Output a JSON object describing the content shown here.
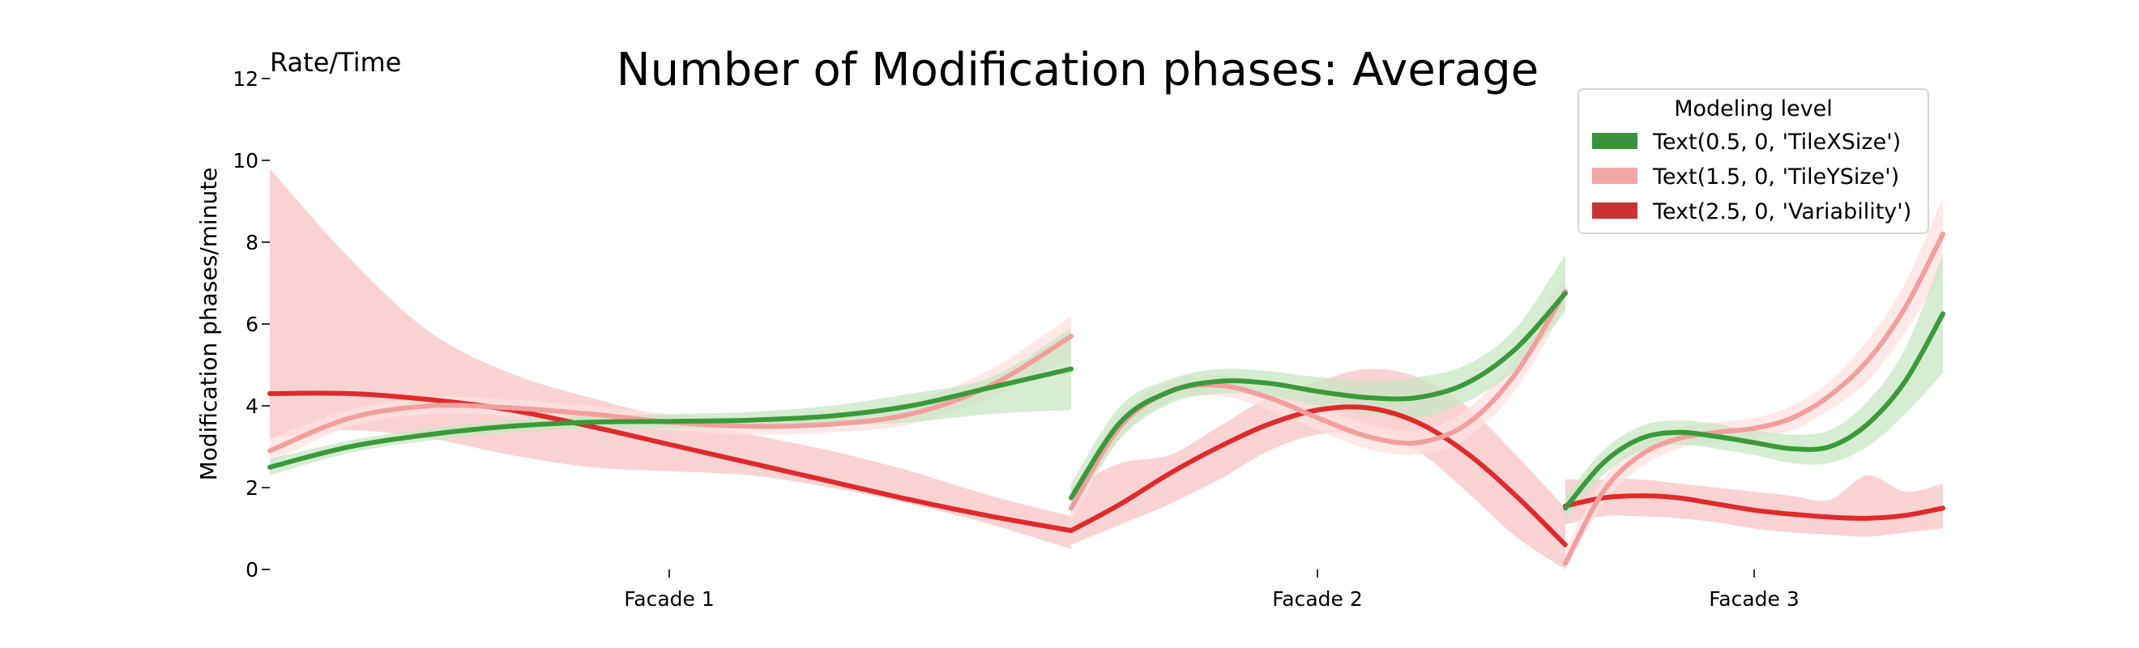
{
  "chart_data": {
    "type": "line",
    "title": "Number of Modification phases: Average",
    "corner_label": "Rate/Time",
    "ylabel": "Modification phases/minute",
    "xlabel": "",
    "ylim": [
      0,
      12
    ],
    "yticks": [
      0,
      2,
      4,
      6,
      8,
      10,
      12
    ],
    "grid": false,
    "legend": {
      "title": "Modeling level",
      "placement": "top-right",
      "entries": [
        "Text(0.5, 0, 'TileXSize')",
        "Text(1.5, 0, 'TileYSize')",
        "Text(2.5, 0, 'Variability')"
      ]
    },
    "colors": {
      "TileXSize": "#3a9a3a",
      "TileYSize": "#f29e9e",
      "Variability": "#df2a2a",
      "band_TileXSize": "#c8e6c4",
      "band_TileYSize": "#fde0e0",
      "band_Variability": "#f7c4c6",
      "legend_TileXSize": "#3a923a",
      "legend_TileYSize": "#f2a6a6",
      "legend_Variability": "#c83232"
    },
    "panels": [
      {
        "category": "Facade 1",
        "series": [
          {
            "key": "TileXSize",
            "x": [
              0,
              0.1,
              0.2,
              0.3,
              0.4,
              0.5,
              0.6,
              0.7,
              0.8,
              0.9,
              1.0
            ],
            "y": [
              2.5,
              3.0,
              3.3,
              3.5,
              3.6,
              3.62,
              3.65,
              3.75,
              4.0,
              4.45,
              4.9
            ],
            "lo": [
              2.3,
              2.85,
              3.15,
              3.35,
              3.45,
              3.45,
              3.45,
              3.5,
              3.6,
              3.8,
              3.9
            ],
            "hi": [
              2.7,
              3.15,
              3.45,
              3.65,
              3.75,
              3.8,
              3.85,
              4.0,
              4.3,
              4.7,
              5.9
            ]
          },
          {
            "key": "TileYSize",
            "x": [
              0,
              0.1,
              0.2,
              0.3,
              0.4,
              0.5,
              0.6,
              0.7,
              0.8,
              0.9,
              1.0
            ],
            "y": [
              2.9,
              3.7,
              4.0,
              3.95,
              3.8,
              3.6,
              3.5,
              3.55,
              3.8,
              4.5,
              5.7
            ],
            "lo": [
              2.6,
              3.5,
              3.8,
              3.75,
              3.6,
              3.4,
              3.3,
              3.35,
              3.55,
              4.2,
              5.2
            ],
            "hi": [
              3.2,
              3.9,
              4.2,
              4.15,
              4.0,
              3.8,
              3.7,
              3.75,
              4.1,
              4.9,
              6.2
            ]
          },
          {
            "key": "Variability",
            "x": [
              0,
              0.1,
              0.2,
              0.3,
              0.4,
              0.5,
              0.6,
              0.7,
              0.8,
              0.9,
              1.0
            ],
            "y": [
              4.3,
              4.3,
              4.15,
              3.9,
              3.5,
              3.05,
              2.6,
              2.15,
              1.7,
              1.3,
              0.95
            ],
            "lo": [
              3.2,
              3.4,
              3.2,
              2.8,
              2.5,
              2.4,
              2.3,
              2.0,
              1.6,
              1.1,
              0.5
            ],
            "hi": [
              9.8,
              7.6,
              5.8,
              4.8,
              4.2,
              3.7,
              3.3,
              2.9,
              2.4,
              1.8,
              1.3
            ]
          }
        ]
      },
      {
        "category": "Facade 2",
        "series": [
          {
            "key": "TileXSize",
            "x": [
              0,
              0.1,
              0.2,
              0.3,
              0.4,
              0.5,
              0.6,
              0.7,
              0.8,
              0.9,
              1.0
            ],
            "y": [
              1.75,
              3.6,
              4.35,
              4.6,
              4.55,
              4.35,
              4.2,
              4.2,
              4.55,
              5.4,
              6.75
            ],
            "lo": [
              1.4,
              3.2,
              4.05,
              4.3,
              4.25,
              4.0,
              3.8,
              3.7,
              4.1,
              4.9,
              6.3
            ],
            "hi": [
              2.1,
              4.0,
              4.65,
              4.9,
              4.85,
              4.7,
              4.6,
              4.7,
              5.0,
              5.9,
              7.7
            ]
          },
          {
            "key": "TileYSize",
            "x": [
              0,
              0.1,
              0.2,
              0.3,
              0.4,
              0.5,
              0.6,
              0.7,
              0.8,
              0.9,
              1.0
            ],
            "y": [
              1.5,
              3.5,
              4.35,
              4.5,
              4.2,
              3.7,
              3.25,
              3.1,
              3.55,
              4.8,
              6.8
            ],
            "lo": [
              1.2,
              3.2,
              4.1,
              4.25,
              3.9,
              3.4,
              2.95,
              2.8,
              3.2,
              4.4,
              6.4
            ],
            "hi": [
              1.8,
              3.8,
              4.6,
              4.75,
              4.5,
              4.0,
              3.55,
              3.4,
              3.9,
              5.2,
              7.2
            ]
          },
          {
            "key": "Variability",
            "x": [
              0,
              0.1,
              0.2,
              0.3,
              0.4,
              0.5,
              0.6,
              0.7,
              0.8,
              0.9,
              1.0
            ],
            "y": [
              0.95,
              1.6,
              2.35,
              3.0,
              3.55,
              3.9,
              3.95,
              3.6,
              2.85,
              1.8,
              0.6
            ],
            "lo": [
              0.6,
              1.1,
              1.6,
              2.2,
              2.9,
              3.3,
              3.3,
              2.9,
              1.9,
              0.8,
              0.0
            ],
            "hi": [
              2.0,
              2.6,
              2.8,
              3.5,
              4.2,
              4.6,
              4.9,
              4.7,
              4.0,
              2.8,
              1.5
            ]
          }
        ]
      },
      {
        "category": "Facade 3",
        "series": [
          {
            "key": "TileXSize",
            "x": [
              0,
              0.1,
              0.2,
              0.3,
              0.4,
              0.5,
              0.6,
              0.7,
              0.8,
              0.9,
              1.0
            ],
            "y": [
              1.5,
              2.6,
              3.2,
              3.35,
              3.25,
              3.1,
              2.95,
              3.0,
              3.55,
              4.6,
              6.25
            ],
            "lo": [
              1.2,
              2.3,
              2.9,
              3.05,
              2.95,
              2.8,
              2.6,
              2.6,
              3.0,
              3.8,
              4.8
            ],
            "hi": [
              1.8,
              2.9,
              3.5,
              3.65,
              3.55,
              3.4,
              3.3,
              3.4,
              4.1,
              5.4,
              7.7
            ]
          },
          {
            "key": "TileYSize",
            "x": [
              0,
              0.1,
              0.2,
              0.3,
              0.4,
              0.5,
              0.6,
              0.7,
              0.8,
              0.9,
              1.0
            ],
            "y": [
              0.15,
              1.9,
              2.8,
              3.2,
              3.35,
              3.45,
              3.7,
              4.25,
              5.1,
              6.4,
              8.2
            ],
            "lo": [
              0.0,
              1.6,
              2.5,
              2.95,
              3.1,
              3.2,
              3.4,
              3.9,
              4.6,
              5.8,
              7.3
            ],
            "hi": [
              0.5,
              2.2,
              3.1,
              3.45,
              3.6,
              3.7,
              4.0,
              4.6,
              5.6,
              7.0,
              9.1
            ]
          },
          {
            "key": "Variability",
            "x": [
              0,
              0.1,
              0.2,
              0.3,
              0.4,
              0.5,
              0.6,
              0.7,
              0.8,
              0.9,
              1.0
            ],
            "y": [
              1.55,
              1.75,
              1.8,
              1.75,
              1.6,
              1.45,
              1.35,
              1.28,
              1.25,
              1.32,
              1.5
            ],
            "lo": [
              1.1,
              1.3,
              1.3,
              1.25,
              1.15,
              1.0,
              0.9,
              0.85,
              0.8,
              0.9,
              1.0
            ],
            "hi": [
              2.2,
              2.2,
              2.2,
              2.1,
              2.0,
              1.9,
              1.8,
              1.7,
              2.3,
              1.9,
              2.1
            ]
          }
        ]
      }
    ]
  }
}
